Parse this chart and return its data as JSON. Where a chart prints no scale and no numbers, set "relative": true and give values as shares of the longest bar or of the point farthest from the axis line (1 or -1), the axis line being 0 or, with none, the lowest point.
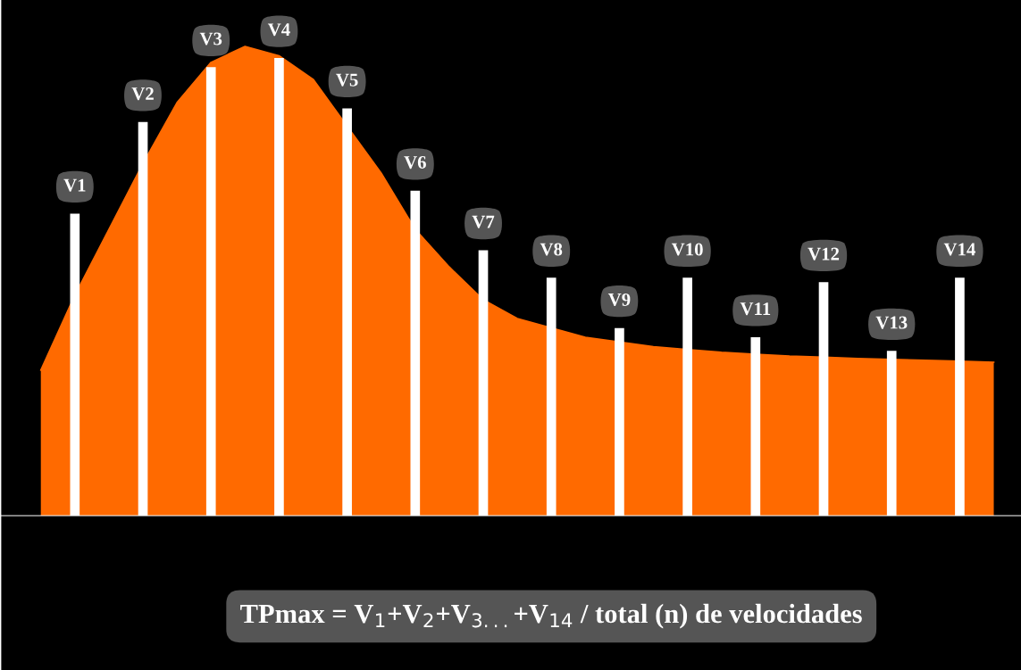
{
  "chart_data": [
    {
      "type": "area",
      "relative": true,
      "color": "#ff6a00",
      "categories": [
        null,
        null,
        null,
        null,
        null,
        null,
        null,
        null,
        null,
        null,
        null,
        null,
        null,
        null,
        null,
        null,
        null,
        null,
        null,
        null,
        null,
        null,
        null,
        null,
        null,
        null,
        null,
        null,
        null
      ],
      "values": [
        0.31,
        0.47,
        0.61,
        0.75,
        0.88,
        0.966,
        1.0,
        0.98,
        0.93,
        0.83,
        0.73,
        0.61,
        0.53,
        0.46,
        0.42,
        0.4,
        0.38,
        0.37,
        0.36,
        0.354,
        0.348,
        0.344,
        0.34,
        0.338,
        0.335,
        0.333,
        0.331,
        0.329,
        0.327
      ],
      "annotations": [
        "TPmax = V$_{1}$+V$_{2}$+V$_{3...}$+V$_{14}$ / total (n) de velocidades"
      ]
    },
    {
      "type": "bar",
      "relative": true,
      "color": "#ffffff",
      "categories": [
        null,
        null,
        null,
        null,
        null,
        null,
        null,
        null,
        null,
        null,
        null,
        null,
        null,
        null
      ],
      "values": [
        0.66,
        0.86,
        0.98,
        1.0,
        0.89,
        0.71,
        0.58,
        0.52,
        0.41,
        0.52,
        0.39,
        0.51,
        0.36,
        0.52
      ],
      "annotations": [
        "V1",
        "V2",
        "V3",
        "V4",
        "V5",
        "V6",
        "V7",
        "V8",
        "V9",
        "V10",
        "V11",
        "V12",
        "V13",
        "V14"
      ]
    }
  ]
}
